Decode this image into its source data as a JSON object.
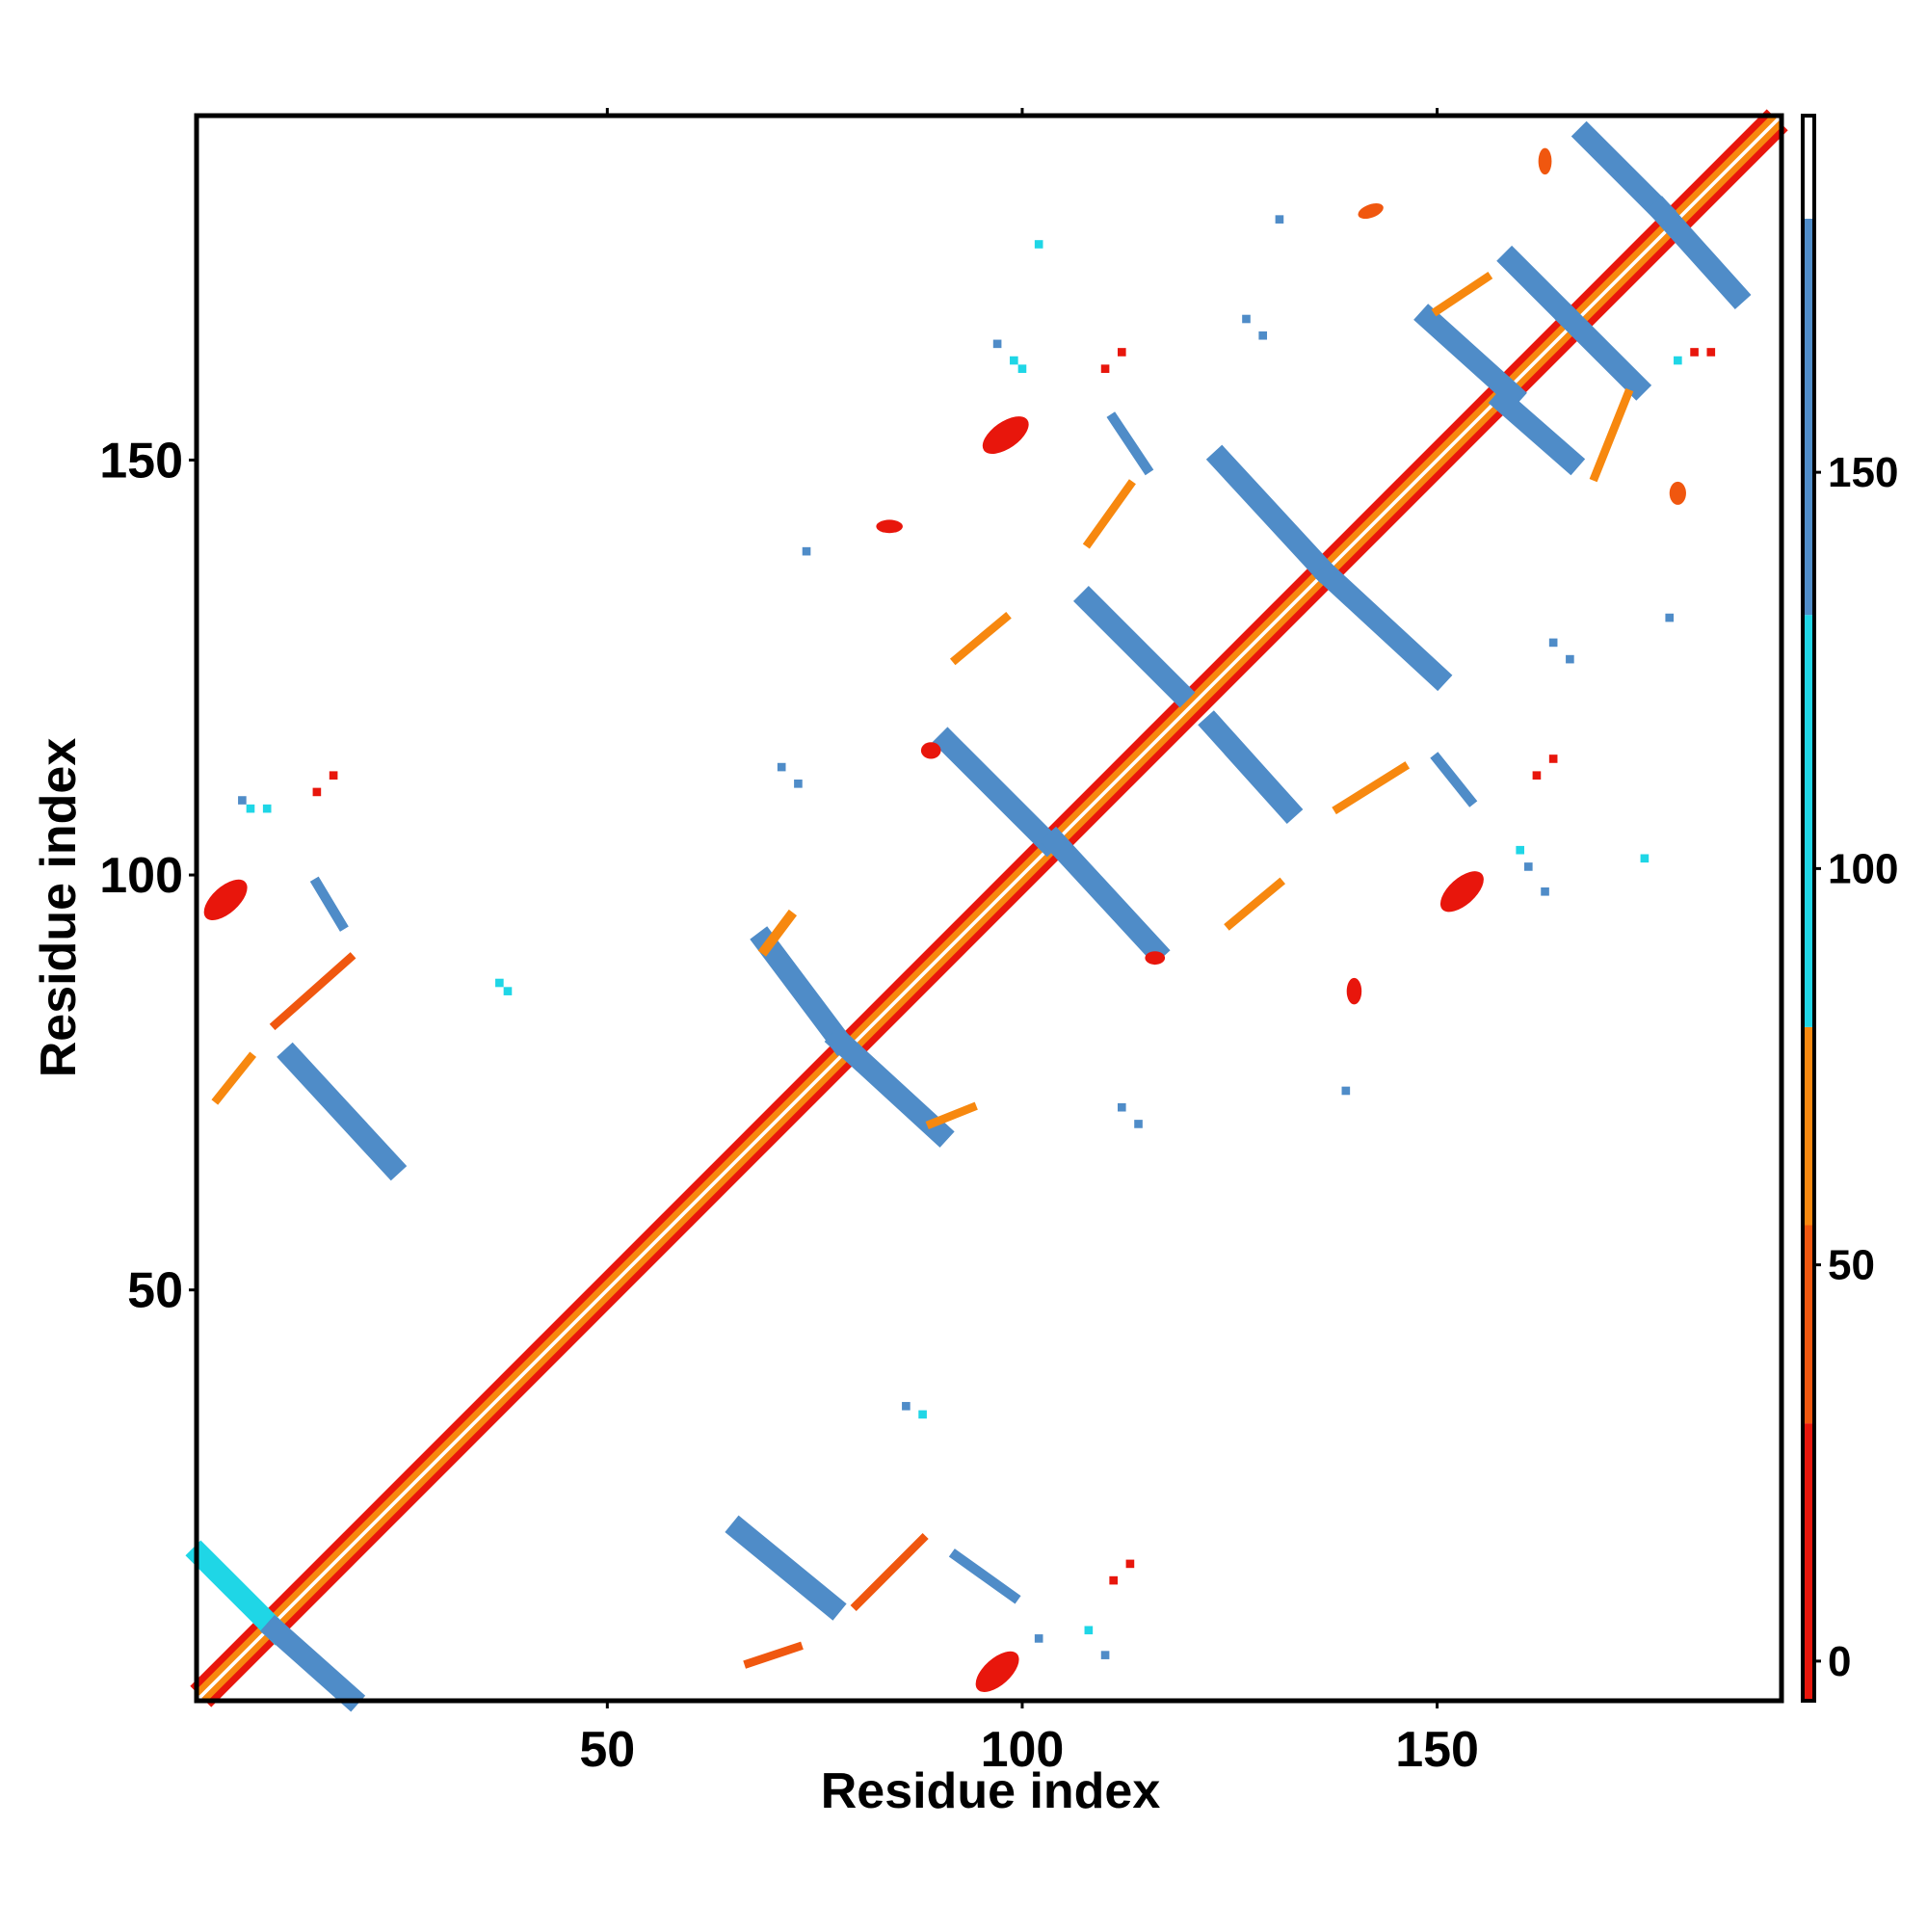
{
  "chart_data": {
    "type": "heatmap",
    "title": "",
    "xlabel": "Residue index",
    "ylabel": "Residue index",
    "xlim": [
      1,
      191
    ],
    "ylim": [
      1,
      191
    ],
    "x_ticks": [
      50,
      100,
      150
    ],
    "y_ticks": [
      50,
      100,
      150
    ],
    "x_tick_labels": [
      "50",
      "100",
      "150"
    ],
    "y_tick_labels": [
      "50",
      "100",
      "150"
    ],
    "grid": false,
    "legend": "right",
    "colorbar": {
      "ticks": [
        0,
        50,
        100,
        150
      ],
      "tick_labels": [
        "0",
        "50",
        "100",
        "150"
      ],
      "range": [
        -5,
        195
      ],
      "stops": [
        {
          "from": -5,
          "to": 30,
          "color": "#e8160c"
        },
        {
          "from": 30,
          "to": 55,
          "color": "#f0570f"
        },
        {
          "from": 55,
          "to": 80,
          "color": "#f7880f"
        },
        {
          "from": 80,
          "to": 132,
          "color": "#1fd6e6"
        },
        {
          "from": 132,
          "to": 182,
          "color": "#4f8cc8"
        },
        {
          "from": 182,
          "to": 195,
          "color": "#ffffff"
        }
      ]
    },
    "colors": {
      "a": "#e8160c",
      "b": "#f0570f",
      "c": "#f7880f",
      "d": "#1fd6e6",
      "e": "#4f8cc8"
    },
    "diagonal_band": {
      "from": 1,
      "to": 191,
      "inner": "c",
      "outer": "a",
      "width": 1.2
    },
    "lines": [
      {
        "x1": 1,
        "y1": 18,
        "x2": 10,
        "y2": 9,
        "c": "d",
        "w": 2.6
      },
      {
        "x1": 10,
        "y1": 9,
        "x2": 19,
        "y2": 1,
        "c": "e",
        "w": 2.6
      },
      {
        "x1": 12,
        "y1": 78,
        "x2": 24,
        "y2": 65,
        "c": "e",
        "w": 2.6
      },
      {
        "x1": 66,
        "y1": 21,
        "x2": 77,
        "y2": 12,
        "c": "e",
        "w": 2.6
      },
      {
        "x1": 69,
        "y1": 92,
        "x2": 78,
        "y2": 80,
        "c": "e",
        "w": 2.6
      },
      {
        "x1": 78,
        "y1": 80,
        "x2": 90,
        "y2": 69,
        "c": "e",
        "w": 2.6
      },
      {
        "x1": 91,
        "y1": 116,
        "x2": 103,
        "y2": 104,
        "c": "e",
        "w": 2.6
      },
      {
        "x1": 104,
        "y1": 104,
        "x2": 116,
        "y2": 91,
        "c": "e",
        "w": 2.6
      },
      {
        "x1": 108,
        "y1": 133,
        "x2": 119,
        "y2": 122,
        "c": "e",
        "w": 2.6
      },
      {
        "x1": 123,
        "y1": 118,
        "x2": 132,
        "y2": 108,
        "c": "e",
        "w": 2.6
      },
      {
        "x1": 124,
        "y1": 150,
        "x2": 136,
        "y2": 137,
        "c": "e",
        "w": 2.6
      },
      {
        "x1": 137,
        "y1": 136,
        "x2": 150,
        "y2": 124,
        "c": "e",
        "w": 2.6
      },
      {
        "x1": 149,
        "y1": 167,
        "x2": 159,
        "y2": 158,
        "c": "e",
        "w": 2.6
      },
      {
        "x1": 158,
        "y1": 157,
        "x2": 166,
        "y2": 150,
        "c": "e",
        "w": 2.6
      },
      {
        "x1": 159,
        "y1": 174,
        "x2": 165,
        "y2": 168,
        "c": "e",
        "w": 2.6
      },
      {
        "x1": 166,
        "y1": 167,
        "x2": 174,
        "y2": 159,
        "c": "e",
        "w": 2.6
      },
      {
        "x1": 168,
        "y1": 189,
        "x2": 177,
        "y2": 180,
        "c": "e",
        "w": 2.6
      },
      {
        "x1": 177,
        "y1": 180,
        "x2": 186,
        "y2": 170,
        "c": "e",
        "w": 2.6
      },
      {
        "x1": 15,
        "y1": 99,
        "x2": 18,
        "y2": 94,
        "c": "e",
        "w": 1.2
      },
      {
        "x1": 92,
        "y1": 18,
        "x2": 99,
        "y2": 13,
        "c": "e",
        "w": 1.2
      },
      {
        "x1": 111,
        "y1": 155,
        "x2": 115,
        "y2": 149,
        "c": "e",
        "w": 1.2
      },
      {
        "x1": 150,
        "y1": 114,
        "x2": 154,
        "y2": 109,
        "c": "e",
        "w": 1.2
      },
      {
        "x1": 10,
        "y1": 82,
        "x2": 19,
        "y2": 90,
        "c": "b",
        "w": 1.0
      },
      {
        "x1": 3,
        "y1": 73,
        "x2": 7,
        "y2": 78,
        "c": "c",
        "w": 1.0
      },
      {
        "x1": 69,
        "y1": 91,
        "x2": 72,
        "y2": 95,
        "c": "c",
        "w": 1.2
      },
      {
        "x1": 80,
        "y1": 12,
        "x2": 88,
        "y2": 20,
        "c": "b",
        "w": 1.0
      },
      {
        "x1": 67,
        "y1": 5,
        "x2": 73,
        "y2": 7,
        "c": "b",
        "w": 1.0
      },
      {
        "x1": 89,
        "y1": 70,
        "x2": 94,
        "y2": 72,
        "c": "c",
        "w": 1.0
      },
      {
        "x1": 92,
        "y1": 126,
        "x2": 98,
        "y2": 131,
        "c": "c",
        "w": 1.0
      },
      {
        "x1": 108,
        "y1": 140,
        "x2": 113,
        "y2": 147,
        "c": "c",
        "w": 1.0
      },
      {
        "x1": 125,
        "y1": 94,
        "x2": 131,
        "y2": 99,
        "c": "c",
        "w": 1.0
      },
      {
        "x1": 138,
        "y1": 108,
        "x2": 146,
        "y2": 113,
        "c": "c",
        "w": 1.0
      },
      {
        "x1": 150,
        "y1": 168,
        "x2": 156,
        "y2": 172,
        "c": "c",
        "w": 1.0
      },
      {
        "x1": 169,
        "y1": 148,
        "x2": 173,
        "y2": 158,
        "c": "c",
        "w": 1.0
      }
    ],
    "blobs": [
      {
        "x": 4,
        "y": 97,
        "rx": 3.2,
        "ry": 1.6,
        "r": -42,
        "c": "a"
      },
      {
        "x": 97,
        "y": 4,
        "rx": 3.2,
        "ry": 1.6,
        "r": -42,
        "c": "a"
      },
      {
        "x": 98,
        "y": 153,
        "rx": 3.2,
        "ry": 1.6,
        "r": -35,
        "c": "a"
      },
      {
        "x": 153,
        "y": 98,
        "rx": 3.2,
        "ry": 1.6,
        "r": -42,
        "c": "a"
      },
      {
        "x": 142,
        "y": 180,
        "rx": 1.6,
        "ry": 0.8,
        "r": -20,
        "c": "b"
      },
      {
        "x": 84,
        "y": 142,
        "rx": 1.6,
        "ry": 0.8,
        "r": 0,
        "c": "a"
      },
      {
        "x": 140,
        "y": 86,
        "rx": 0.9,
        "ry": 1.6,
        "r": 0,
        "c": "a"
      },
      {
        "x": 179,
        "y": 146,
        "rx": 1.0,
        "ry": 1.4,
        "r": 0,
        "c": "b"
      },
      {
        "x": 163,
        "y": 186,
        "rx": 0.8,
        "ry": 1.6,
        "r": 0,
        "c": "b"
      },
      {
        "x": 116,
        "y": 90,
        "rx": 1.2,
        "ry": 0.8,
        "r": 0,
        "c": "a"
      },
      {
        "x": 89,
        "y": 115,
        "rx": 1.2,
        "ry": 1.0,
        "r": 0,
        "c": "a"
      }
    ],
    "points": [
      {
        "x": 102,
        "y": 176,
        "c": "d"
      },
      {
        "x": 131,
        "y": 179,
        "c": "e"
      },
      {
        "x": 97,
        "y": 164,
        "c": "e"
      },
      {
        "x": 99,
        "y": 162,
        "c": "d"
      },
      {
        "x": 100,
        "y": 161,
        "c": "d"
      },
      {
        "x": 127,
        "y": 167,
        "c": "e"
      },
      {
        "x": 129,
        "y": 165,
        "c": "e"
      },
      {
        "x": 112,
        "y": 163,
        "c": "a"
      },
      {
        "x": 110,
        "y": 161,
        "c": "a"
      },
      {
        "x": 74,
        "y": 139,
        "c": "e"
      },
      {
        "x": 71,
        "y": 113,
        "c": "e"
      },
      {
        "x": 73,
        "y": 111,
        "c": "e"
      },
      {
        "x": 6,
        "y": 109,
        "c": "e"
      },
      {
        "x": 7,
        "y": 108,
        "c": "d"
      },
      {
        "x": 9,
        "y": 108,
        "c": "d"
      },
      {
        "x": 15,
        "y": 110,
        "c": "a"
      },
      {
        "x": 17,
        "y": 112,
        "c": "a"
      },
      {
        "x": 37,
        "y": 87,
        "c": "d"
      },
      {
        "x": 38,
        "y": 86,
        "c": "d"
      },
      {
        "x": 86,
        "y": 36,
        "c": "e"
      },
      {
        "x": 88,
        "y": 35,
        "c": "d"
      },
      {
        "x": 112,
        "y": 72,
        "c": "e"
      },
      {
        "x": 114,
        "y": 70,
        "c": "e"
      },
      {
        "x": 139,
        "y": 74,
        "c": "e"
      },
      {
        "x": 102,
        "y": 8,
        "c": "e"
      },
      {
        "x": 108,
        "y": 9,
        "c": "d"
      },
      {
        "x": 110,
        "y": 6,
        "c": "e"
      },
      {
        "x": 111,
        "y": 15,
        "c": "a"
      },
      {
        "x": 113,
        "y": 17,
        "c": "a"
      },
      {
        "x": 162,
        "y": 112,
        "c": "a"
      },
      {
        "x": 164,
        "y": 114,
        "c": "a"
      },
      {
        "x": 160,
        "y": 103,
        "c": "d"
      },
      {
        "x": 161,
        "y": 101,
        "c": "e"
      },
      {
        "x": 163,
        "y": 98,
        "c": "e"
      },
      {
        "x": 175,
        "y": 102,
        "c": "d"
      },
      {
        "x": 164,
        "y": 128,
        "c": "e"
      },
      {
        "x": 166,
        "y": 126,
        "c": "e"
      },
      {
        "x": 178,
        "y": 131,
        "c": "e"
      },
      {
        "x": 181,
        "y": 163,
        "c": "a"
      },
      {
        "x": 183,
        "y": 163,
        "c": "a"
      },
      {
        "x": 179,
        "y": 162,
        "c": "d"
      }
    ]
  }
}
